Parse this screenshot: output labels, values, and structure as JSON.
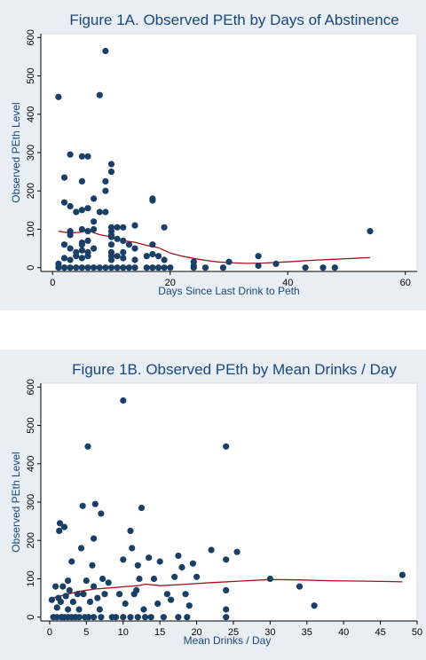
{
  "colors": {
    "panel_bg": "#e8eef3",
    "plot_bg": "#ffffff",
    "title": "#1a477a",
    "marker": "#1a3f66",
    "lowess": "#a3111a"
  },
  "chart_data": [
    {
      "type": "scatter",
      "title": "Figure 1A. Observed PEth by Days of Abstinence",
      "xlabel": "Days Since Last Drink to Peth",
      "ylabel": "Observed PEth Level",
      "xlim": [
        -2,
        62
      ],
      "ylim": [
        -10,
        610
      ],
      "xticks": [
        0,
        20,
        40,
        60
      ],
      "yticks": [
        0,
        100,
        200,
        300,
        400,
        500,
        600
      ],
      "grid": false,
      "points": [
        [
          1,
          445
        ],
        [
          1,
          0
        ],
        [
          1,
          10
        ],
        [
          2,
          25
        ],
        [
          2,
          0
        ],
        [
          2,
          235
        ],
        [
          2,
          170
        ],
        [
          2,
          60
        ],
        [
          2,
          0
        ],
        [
          3,
          295
        ],
        [
          3,
          160
        ],
        [
          3,
          85
        ],
        [
          3,
          95
        ],
        [
          3,
          50
        ],
        [
          3,
          20
        ],
        [
          3,
          0
        ],
        [
          4,
          145
        ],
        [
          4,
          40
        ],
        [
          4,
          0
        ],
        [
          4,
          30
        ],
        [
          5,
          290
        ],
        [
          5,
          225
        ],
        [
          5,
          150
        ],
        [
          5,
          100
        ],
        [
          5,
          60
        ],
        [
          5,
          45
        ],
        [
          5,
          25
        ],
        [
          5,
          0
        ],
        [
          5,
          65
        ],
        [
          6,
          290
        ],
        [
          6,
          155
        ],
        [
          6,
          95
        ],
        [
          6,
          70
        ],
        [
          6,
          40
        ],
        [
          6,
          30
        ],
        [
          6,
          0
        ],
        [
          7,
          180
        ],
        [
          7,
          120
        ],
        [
          7,
          100
        ],
        [
          7,
          50
        ],
        [
          7,
          0
        ],
        [
          8,
          450
        ],
        [
          8,
          145
        ],
        [
          8,
          0
        ],
        [
          9,
          565
        ],
        [
          9,
          225
        ],
        [
          9,
          145
        ],
        [
          9,
          200
        ],
        [
          9,
          0
        ],
        [
          10,
          270
        ],
        [
          10,
          250
        ],
        [
          10,
          105
        ],
        [
          10,
          95
        ],
        [
          10,
          85
        ],
        [
          10,
          80
        ],
        [
          10,
          60
        ],
        [
          10,
          40
        ],
        [
          10,
          30
        ],
        [
          10,
          20
        ],
        [
          10,
          0
        ],
        [
          11,
          105
        ],
        [
          11,
          75
        ],
        [
          11,
          30
        ],
        [
          11,
          0
        ],
        [
          12,
          105
        ],
        [
          12,
          70
        ],
        [
          12,
          40
        ],
        [
          12,
          25
        ],
        [
          12,
          0
        ],
        [
          13,
          60
        ],
        [
          13,
          0
        ],
        [
          14,
          110
        ],
        [
          14,
          50
        ],
        [
          14,
          20
        ],
        [
          14,
          0
        ],
        [
          16,
          30
        ],
        [
          16,
          0
        ],
        [
          17,
          180
        ],
        [
          17,
          175
        ],
        [
          17,
          60
        ],
        [
          17,
          35
        ],
        [
          17,
          0
        ],
        [
          18,
          30
        ],
        [
          18,
          0
        ],
        [
          19,
          105
        ],
        [
          19,
          20
        ],
        [
          19,
          0
        ],
        [
          20,
          0
        ],
        [
          24,
          15
        ],
        [
          24,
          5
        ],
        [
          24,
          0
        ],
        [
          26,
          0
        ],
        [
          29,
          0
        ],
        [
          30,
          15
        ],
        [
          35,
          30
        ],
        [
          35,
          5
        ],
        [
          38,
          10
        ],
        [
          43,
          0
        ],
        [
          46,
          0
        ],
        [
          48,
          0
        ],
        [
          54,
          95
        ]
      ],
      "lowess": [
        [
          1,
          95
        ],
        [
          3,
          90
        ],
        [
          5,
          93
        ],
        [
          6,
          98
        ],
        [
          7,
          91
        ],
        [
          8,
          86
        ],
        [
          10,
          80
        ],
        [
          12,
          70
        ],
        [
          14,
          66
        ],
        [
          16,
          58
        ],
        [
          18,
          52
        ],
        [
          20,
          38
        ],
        [
          22,
          30
        ],
        [
          24,
          24
        ],
        [
          26,
          19
        ],
        [
          28,
          15
        ],
        [
          30,
          13
        ],
        [
          33,
          11
        ],
        [
          36,
          12
        ],
        [
          40,
          15
        ],
        [
          44,
          19
        ],
        [
          48,
          22
        ],
        [
          51,
          24
        ],
        [
          54,
          26
        ]
      ]
    },
    {
      "type": "scatter",
      "title": "Figure 1B. Observed PEth by Mean Drinks / Day",
      "xlabel": "Mean Drinks / Day",
      "ylabel": "Observed PEth Level",
      "xlim": [
        -1.2,
        50
      ],
      "ylim": [
        -10,
        610
      ],
      "xticks": [
        0,
        5,
        10,
        15,
        20,
        25,
        30,
        35,
        40,
        45,
        50
      ],
      "yticks": [
        0,
        100,
        200,
        300,
        400,
        500,
        600
      ],
      "grid": false,
      "points": [
        [
          0.3,
          45
        ],
        [
          0.5,
          0
        ],
        [
          0.8,
          80
        ],
        [
          1,
          25
        ],
        [
          1,
          0
        ],
        [
          1.2,
          50
        ],
        [
          1.3,
          225
        ],
        [
          1.4,
          245
        ],
        [
          1.5,
          40
        ],
        [
          1.6,
          0
        ],
        [
          1.8,
          80
        ],
        [
          2,
          235
        ],
        [
          2,
          0
        ],
        [
          2.2,
          55
        ],
        [
          2.5,
          95
        ],
        [
          2.5,
          20
        ],
        [
          2.5,
          0
        ],
        [
          2.7,
          70
        ],
        [
          3,
          145
        ],
        [
          3,
          0
        ],
        [
          3.2,
          40
        ],
        [
          3.5,
          0
        ],
        [
          3.8,
          60
        ],
        [
          4,
          20
        ],
        [
          4,
          0
        ],
        [
          4.3,
          180
        ],
        [
          4.5,
          290
        ],
        [
          4.6,
          60
        ],
        [
          4.8,
          0
        ],
        [
          5,
          95
        ],
        [
          5.2,
          445
        ],
        [
          5.3,
          0
        ],
        [
          5.5,
          40
        ],
        [
          5.8,
          135
        ],
        [
          6,
          205
        ],
        [
          6,
          80
        ],
        [
          6,
          0
        ],
        [
          6.2,
          295
        ],
        [
          6.5,
          50
        ],
        [
          6.8,
          20
        ],
        [
          7,
          270
        ],
        [
          7,
          0
        ],
        [
          7.2,
          100
        ],
        [
          7.5,
          60
        ],
        [
          8,
          90
        ],
        [
          8.5,
          0
        ],
        [
          9,
          0
        ],
        [
          9.5,
          60
        ],
        [
          10,
          565
        ],
        [
          10,
          150
        ],
        [
          10,
          0
        ],
        [
          10.3,
          35
        ],
        [
          11,
          225
        ],
        [
          11,
          0
        ],
        [
          11.2,
          180
        ],
        [
          11.5,
          60
        ],
        [
          11.8,
          70
        ],
        [
          12,
          135
        ],
        [
          12,
          0
        ],
        [
          12.2,
          100
        ],
        [
          12.5,
          285
        ],
        [
          12.8,
          20
        ],
        [
          13,
          0
        ],
        [
          13.5,
          155
        ],
        [
          13.8,
          0
        ],
        [
          14.2,
          100
        ],
        [
          14.7,
          35
        ],
        [
          15,
          145
        ],
        [
          15.5,
          0
        ],
        [
          16,
          60
        ],
        [
          16.5,
          45
        ],
        [
          17,
          105
        ],
        [
          17.5,
          160
        ],
        [
          17.5,
          0
        ],
        [
          18,
          130
        ],
        [
          18.5,
          60
        ],
        [
          18.7,
          0
        ],
        [
          19,
          30
        ],
        [
          19.5,
          140
        ],
        [
          20,
          105
        ],
        [
          22,
          175
        ],
        [
          24,
          445
        ],
        [
          24,
          150
        ],
        [
          24,
          70
        ],
        [
          24,
          20
        ],
        [
          24,
          0
        ],
        [
          25.5,
          170
        ],
        [
          30,
          100
        ],
        [
          34,
          80
        ],
        [
          36,
          30
        ],
        [
          48,
          110
        ]
      ],
      "lowess": [
        [
          0.3,
          50
        ],
        [
          2,
          58
        ],
        [
          4,
          67
        ],
        [
          6,
          73
        ],
        [
          8,
          76
        ],
        [
          10,
          79
        ],
        [
          12,
          82
        ],
        [
          13,
          86
        ],
        [
          15,
          82
        ],
        [
          18,
          85
        ],
        [
          22,
          90
        ],
        [
          26,
          94
        ],
        [
          30,
          98
        ],
        [
          34,
          97
        ],
        [
          38,
          95
        ],
        [
          42,
          94
        ],
        [
          46,
          93
        ],
        [
          48,
          92
        ]
      ]
    }
  ]
}
